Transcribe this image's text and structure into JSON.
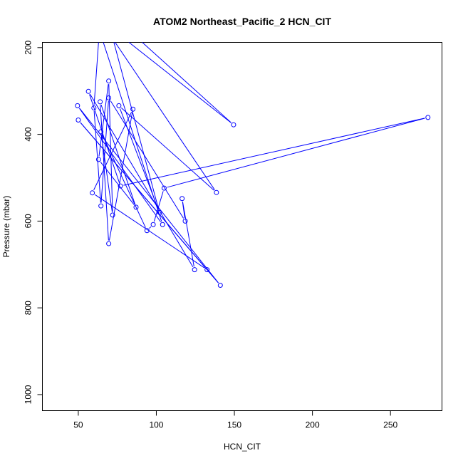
{
  "chart_data": {
    "type": "line",
    "title": "ATOM2 Northeast_Pacific_2 HCN_CIT",
    "xlabel": "HCN_CIT",
    "ylabel": "Pressure (mbar)",
    "xlim": [
      27,
      283
    ],
    "ylim": [
      1037,
      188
    ],
    "y_reversed": true,
    "x_ticks": [
      50,
      100,
      150,
      200,
      250
    ],
    "y_ticks": [
      200,
      400,
      600,
      800,
      1000
    ],
    "series": [
      {
        "color": "#0000ff",
        "points": [
          {
            "x": 55,
            "y": 110
          },
          {
            "x": 149.5,
            "y": 378
          },
          {
            "x": 67,
            "y": 110
          },
          {
            "x": 102,
            "y": 580
          },
          {
            "x": 76,
            "y": 334
          },
          {
            "x": 138.5,
            "y": 534
          },
          {
            "x": 59,
            "y": 110
          },
          {
            "x": 104,
            "y": 608
          },
          {
            "x": 49.5,
            "y": 334
          },
          {
            "x": 141,
            "y": 748
          },
          {
            "x": 50,
            "y": 367
          },
          {
            "x": 132.5,
            "y": 712
          },
          {
            "x": 59,
            "y": 535
          },
          {
            "x": 85,
            "y": 342
          },
          {
            "x": 69.5,
            "y": 652
          },
          {
            "x": 64,
            "y": 325
          },
          {
            "x": 87,
            "y": 568
          },
          {
            "x": 63,
            "y": 458
          },
          {
            "x": 69.5,
            "y": 277
          },
          {
            "x": 72,
            "y": 586
          },
          {
            "x": 64.5,
            "y": 394
          },
          {
            "x": 94,
            "y": 622
          },
          {
            "x": 98,
            "y": 608
          },
          {
            "x": 105,
            "y": 524
          },
          {
            "x": 274,
            "y": 361
          },
          {
            "x": 77,
            "y": 519
          },
          {
            "x": 56.5,
            "y": 301
          },
          {
            "x": 124.5,
            "y": 712
          },
          {
            "x": 116.5,
            "y": 548
          },
          {
            "x": 118.5,
            "y": 600
          },
          {
            "x": 69.5,
            "y": 316
          },
          {
            "x": 64.5,
            "y": 565
          },
          {
            "x": 60,
            "y": 339
          },
          {
            "x": 64.5,
            "y": 110
          }
        ]
      }
    ],
    "grid": false,
    "legend": "none"
  }
}
